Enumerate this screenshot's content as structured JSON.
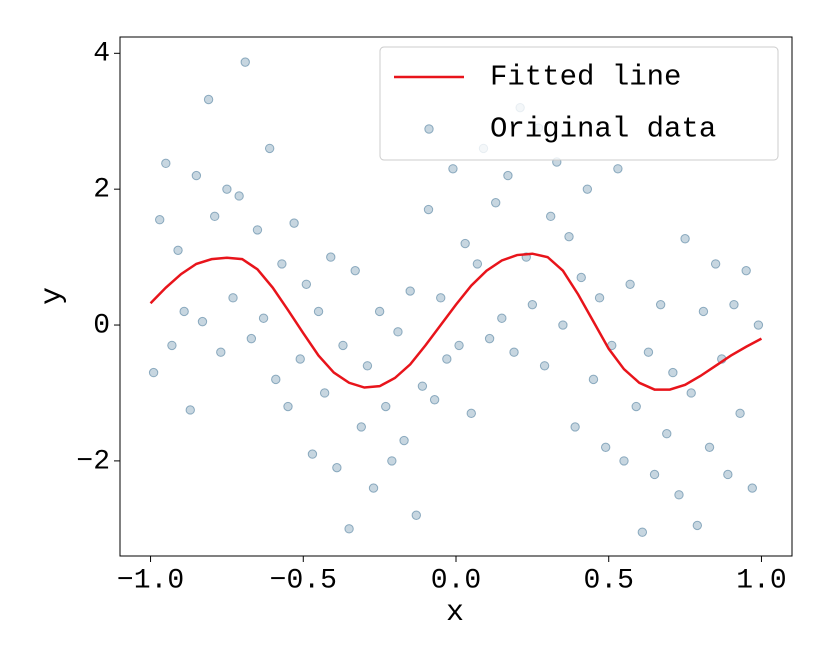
{
  "chart_data": {
    "type": "scatter",
    "xlabel": "x",
    "ylabel": "y",
    "xlim": [
      -1.1,
      1.1
    ],
    "ylim": [
      -3.4,
      4.24
    ],
    "xticks": [
      {
        "value": -1.0,
        "label": "−1.0"
      },
      {
        "value": -0.5,
        "label": "−0.5"
      },
      {
        "value": 0.0,
        "label": "0.0"
      },
      {
        "value": 0.5,
        "label": "0.5"
      },
      {
        "value": 1.0,
        "label": "1.0"
      }
    ],
    "yticks": [
      {
        "value": -2,
        "label": "−2"
      },
      0,
      2,
      4
    ],
    "grid": false,
    "legend": "upper right",
    "series": [
      {
        "name": "Fitted line",
        "type": "line",
        "color": "#e8141b",
        "x": [
          -1.0,
          -0.95,
          -0.9,
          -0.85,
          -0.8,
          -0.75,
          -0.7,
          -0.65,
          -0.6,
          -0.55,
          -0.5,
          -0.45,
          -0.4,
          -0.35,
          -0.3,
          -0.25,
          -0.2,
          -0.15,
          -0.1,
          -0.05,
          0.0,
          0.05,
          0.1,
          0.15,
          0.2,
          0.25,
          0.3,
          0.35,
          0.4,
          0.45,
          0.5,
          0.55,
          0.6,
          0.65,
          0.7,
          0.75,
          0.8,
          0.85,
          0.9,
          0.95,
          1.0
        ],
        "values": [
          0.32,
          0.55,
          0.75,
          0.9,
          0.97,
          0.99,
          0.97,
          0.82,
          0.55,
          0.22,
          -0.12,
          -0.45,
          -0.7,
          -0.85,
          -0.92,
          -0.9,
          -0.78,
          -0.58,
          -0.3,
          0.0,
          0.3,
          0.58,
          0.8,
          0.95,
          1.03,
          1.05,
          1.0,
          0.8,
          0.45,
          0.05,
          -0.35,
          -0.65,
          -0.85,
          -0.95,
          -0.95,
          -0.88,
          -0.75,
          -0.6,
          -0.45,
          -0.32,
          -0.2
        ]
      },
      {
        "name": "Original data",
        "type": "scatter",
        "color": "#1f5a82",
        "x": [
          -0.99,
          -0.97,
          -0.95,
          -0.93,
          -0.91,
          -0.89,
          -0.87,
          -0.85,
          -0.83,
          -0.81,
          -0.79,
          -0.77,
          -0.75,
          -0.73,
          -0.71,
          -0.69,
          -0.67,
          -0.65,
          -0.63,
          -0.61,
          -0.59,
          -0.57,
          -0.55,
          -0.53,
          -0.51,
          -0.49,
          -0.47,
          -0.45,
          -0.43,
          -0.41,
          -0.39,
          -0.37,
          -0.35,
          -0.33,
          -0.31,
          -0.29,
          -0.27,
          -0.25,
          -0.23,
          -0.21,
          -0.19,
          -0.17,
          -0.15,
          -0.13,
          -0.11,
          -0.09,
          -0.07,
          -0.05,
          -0.03,
          -0.01,
          0.01,
          0.03,
          0.05,
          0.07,
          0.09,
          0.11,
          0.13,
          0.15,
          0.17,
          0.19,
          0.21,
          0.23,
          0.25,
          0.27,
          0.29,
          0.31,
          0.33,
          0.35,
          0.37,
          0.39,
          0.41,
          0.43,
          0.45,
          0.47,
          0.49,
          0.51,
          0.53,
          0.55,
          0.57,
          0.59,
          0.61,
          0.63,
          0.65,
          0.67,
          0.69,
          0.71,
          0.73,
          0.75,
          0.77,
          0.79,
          0.81,
          0.83,
          0.85,
          0.87,
          0.89,
          0.91,
          0.93,
          0.95,
          0.97,
          0.99
        ],
        "values": [
          -0.7,
          1.55,
          2.38,
          -0.3,
          1.1,
          0.2,
          -1.25,
          2.2,
          0.05,
          3.32,
          1.6,
          -0.4,
          2.0,
          0.4,
          1.9,
          3.87,
          -0.2,
          1.4,
          0.1,
          2.6,
          -0.8,
          0.9,
          -1.2,
          1.5,
          -0.5,
          0.6,
          -1.9,
          0.2,
          -1.0,
          1.0,
          -2.1,
          -0.3,
          -3.0,
          0.8,
          -1.5,
          -0.6,
          -2.4,
          0.2,
          -1.2,
          -2.0,
          -0.1,
          -1.7,
          0.5,
          -2.8,
          -0.9,
          1.7,
          -1.1,
          0.4,
          -0.5,
          2.3,
          -0.3,
          1.2,
          -1.3,
          0.9,
          2.6,
          -0.2,
          1.8,
          0.1,
          2.2,
          -0.4,
          3.2,
          1.0,
          0.3,
          2.9,
          -0.6,
          1.6,
          2.4,
          0.0,
          1.3,
          -1.5,
          0.7,
          2.0,
          -0.8,
          0.4,
          -1.8,
          -0.3,
          2.3,
          -2.0,
          0.6,
          -1.2,
          -3.05,
          -0.4,
          -2.2,
          0.3,
          -1.6,
          -0.7,
          -2.5,
          1.27,
          -1.0,
          -2.95,
          0.2,
          -1.8,
          0.9,
          -0.5,
          -2.2,
          0.3,
          -1.3,
          0.8,
          -2.4,
          0.0
        ]
      }
    ]
  }
}
